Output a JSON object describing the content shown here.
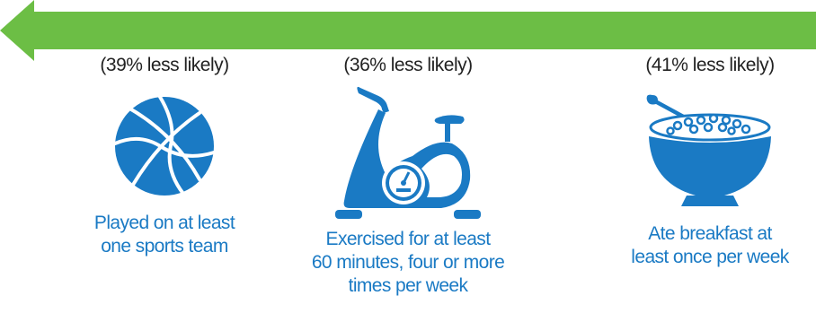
{
  "colors": {
    "arrow": "#6cbe45",
    "icon": "#1a7ac4",
    "percent_text": "#222222",
    "caption_text": "#1a7ac4"
  },
  "items": [
    {
      "percent": "(39% less likely)",
      "icon": "basketball-icon",
      "caption_lines": [
        "Played on at least",
        "one sports team"
      ]
    },
    {
      "percent": "(36% less likely)",
      "icon": "exercise-bike-icon",
      "caption_lines": [
        "Exercised for at least",
        "60 minutes, four or more",
        "times per week"
      ]
    },
    {
      "percent": "(41% less likely)",
      "icon": "cereal-bowl-icon",
      "caption_lines": [
        "Ate breakfast at",
        "least once per week"
      ]
    }
  ]
}
